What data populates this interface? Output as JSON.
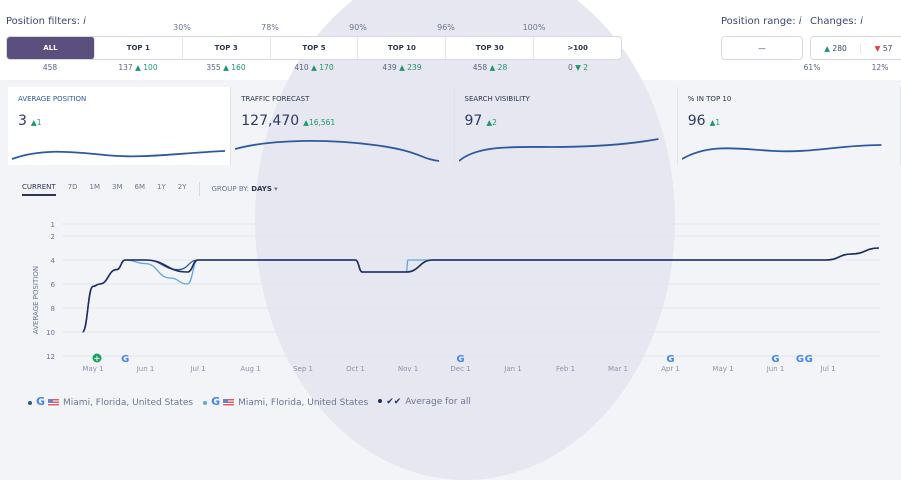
{
  "filters": {
    "title": "Position filters:",
    "info": "i",
    "items": [
      {
        "label": "ALL",
        "pct": "",
        "count": "458",
        "delta": "",
        "dir": ""
      },
      {
        "label": "TOP 1",
        "pct": "30%",
        "count": "137",
        "delta": "100",
        "dir": "up"
      },
      {
        "label": "TOP 3",
        "pct": "78%",
        "count": "355",
        "delta": "160",
        "dir": "up"
      },
      {
        "label": "TOP 5",
        "pct": "90%",
        "count": "410",
        "delta": "170",
        "dir": "up"
      },
      {
        "label": "TOP 10",
        "pct": "96%",
        "count": "439",
        "delta": "239",
        "dir": "up"
      },
      {
        "label": "TOP 30",
        "pct": "100%",
        "count": "458",
        "delta": "28",
        "dir": "up"
      },
      {
        "label": ">100",
        "pct": "",
        "count": "0",
        "delta": "2",
        "dir": "down"
      }
    ]
  },
  "range": {
    "title": "Position range:",
    "info": "i",
    "value": "—"
  },
  "changes": {
    "title": "Changes:",
    "info": "i",
    "up": "280",
    "down": "57",
    "up_pct": "61%",
    "down_pct": "12%"
  },
  "cards": [
    {
      "title": "AVERAGE POSITION",
      "value": "3",
      "delta": "1"
    },
    {
      "title": "TRAFFIC FORECAST",
      "value": "127,470",
      "delta": "16,561"
    },
    {
      "title": "SEARCH VISIBILITY",
      "value": "97",
      "delta": "2"
    },
    {
      "title": "% IN TOP 10",
      "value": "96",
      "delta": "1"
    }
  ],
  "periods": [
    "CURRENT",
    "7D",
    "1M",
    "3M",
    "6M",
    "1Y",
    "2Y"
  ],
  "group_by": {
    "label": "GROUP BY:",
    "value": "DAYS"
  },
  "colors": {
    "accent": "#5b4f7e",
    "series1": "#2c5aa0",
    "series2": "#5aa8e0",
    "average": "#1f2f66",
    "up": "#1a9a6c",
    "down": "#e03c4a"
  },
  "chart_data": {
    "type": "line",
    "ylabel": "AVERAGE POSITION",
    "y_reversed": true,
    "ylim": [
      1,
      12
    ],
    "yticks": [
      "1",
      "2",
      "4",
      "6",
      "8",
      "10",
      "12"
    ],
    "xticks": [
      "May 1",
      "Jun 1",
      "Jul 1",
      "Aug 1",
      "Sep 1",
      "Oct 1",
      "Nov 1",
      "Dec 1",
      "Jan 1",
      "Feb 1",
      "Mar 1",
      "Apr 1",
      "May 1",
      "Jun 1",
      "Jul 1"
    ],
    "series": [
      {
        "points": [
          [
            "Apr 25",
            10
          ],
          [
            "May 1",
            6.2
          ],
          [
            "May 5",
            6
          ],
          [
            "May 15",
            4.8
          ],
          [
            "May 20",
            4
          ],
          [
            "Jun 1",
            4
          ],
          [
            "Jun 20",
            4.8
          ],
          [
            "Jul 1",
            4
          ],
          [
            "Oct 1",
            4
          ],
          [
            "Oct 5",
            5
          ],
          [
            "Oct 31",
            5
          ],
          [
            "Nov 15",
            4
          ],
          [
            "Jun 30",
            4
          ],
          [
            "Jul 15",
            3.5
          ],
          [
            "Jul 31",
            3
          ]
        ]
      },
      {
        "points": [
          [
            "Apr 25",
            10
          ],
          [
            "May 1",
            6.2
          ],
          [
            "May 5",
            6
          ],
          [
            "May 15",
            4.8
          ],
          [
            "May 20",
            4
          ],
          [
            "Jun 1",
            4.3
          ],
          [
            "Jun 15",
            5.5
          ],
          [
            "Jun 25",
            6
          ],
          [
            "Jul 1",
            4
          ],
          [
            "Oct 1",
            4
          ],
          [
            "Oct 5",
            5
          ],
          [
            "Oct 31",
            5
          ],
          [
            "Nov 1",
            4
          ],
          [
            "Jun 30",
            4
          ],
          [
            "Jul 15",
            3.5
          ],
          [
            "Jul 31",
            3
          ]
        ]
      },
      {
        "name": "Average for all",
        "points": [
          [
            "Apr 25",
            10
          ],
          [
            "May 1",
            6.2
          ],
          [
            "May 5",
            6
          ],
          [
            "May 15",
            4.8
          ],
          [
            "May 20",
            4
          ],
          [
            "Jun 1",
            4
          ],
          [
            "Jun 25",
            5
          ],
          [
            "Jul 1",
            4
          ],
          [
            "Oct 1",
            4
          ],
          [
            "Oct 5",
            5
          ],
          [
            "Oct 31",
            5
          ],
          [
            "Nov 15",
            4
          ],
          [
            "Jun 30",
            4
          ],
          [
            "Jul 15",
            3.5
          ],
          [
            "Jul 31",
            3
          ]
        ]
      }
    ],
    "markers": [
      {
        "type": "note",
        "date": "May 1"
      },
      {
        "type": "google",
        "date": "May 20"
      },
      {
        "type": "google",
        "date": "Dec 1"
      },
      {
        "type": "google",
        "date": "Apr 1"
      },
      {
        "type": "google",
        "date": "Jun 1"
      },
      {
        "type": "google",
        "date": "Jun 15"
      },
      {
        "type": "google",
        "date": "Jun 20"
      }
    ],
    "legend": [
      {
        "location": "Miami, Florida, United States"
      },
      {
        "location": "Miami, Florida, United States"
      },
      {
        "label": "Average for all"
      }
    ]
  }
}
